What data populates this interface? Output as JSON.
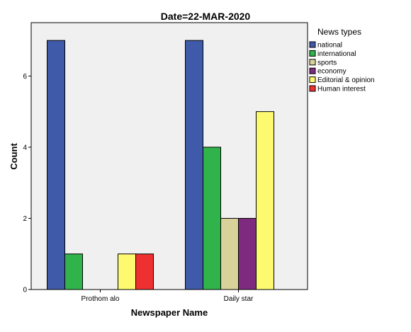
{
  "chart_data": {
    "type": "bar",
    "title": "Date=22-MAR-2020",
    "xlabel": "Newspaper Name",
    "ylabel": "Count",
    "categories": [
      "Prothom alo",
      "Daily star"
    ],
    "series": [
      {
        "name": "national",
        "color": "#3f5aa8",
        "values": [
          7,
          7
        ]
      },
      {
        "name": "international",
        "color": "#2fb34a",
        "values": [
          1,
          4
        ]
      },
      {
        "name": "sports",
        "color": "#d8d29a",
        "values": [
          0,
          2
        ]
      },
      {
        "name": "economy",
        "color": "#7e2a7e",
        "values": [
          0,
          2
        ]
      },
      {
        "name": "Editorial & opinion",
        "color": "#fefa70",
        "values": [
          1,
          5
        ]
      },
      {
        "name": "Human interest",
        "color": "#ee3030",
        "values": [
          1,
          0
        ]
      }
    ],
    "yticks": [
      0,
      2,
      4,
      6
    ],
    "ylim": [
      0,
      7.5
    ],
    "legend": {
      "title": "News types",
      "position": "right"
    },
    "grid": false
  }
}
